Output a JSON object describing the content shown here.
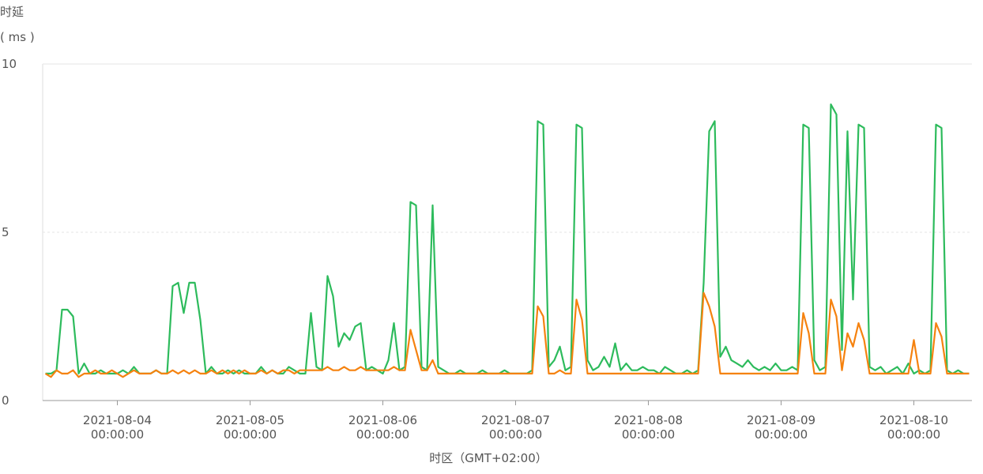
{
  "chart_data": {
    "type": "line",
    "ylabel": "时延",
    "yunit": "( ms )",
    "xlabel": "时区（GMT+02:00）",
    "xlim": [
      "2021-08-03 10:30:00",
      "2021-08-10 10:30:00"
    ],
    "xticks": [
      "2021-08-04 00:00:00",
      "2021-08-05 00:00:00",
      "2021-08-06 00:00:00",
      "2021-08-07 00:00:00",
      "2021-08-08 00:00:00",
      "2021-08-09 00:00:00",
      "2021-08-10 00:00:00"
    ],
    "ylim": [
      0,
      10
    ],
    "yticks": [
      0,
      5,
      10
    ],
    "grid": true,
    "x": [
      "2021-08-03 11:00:00",
      "2021-08-03 12:00:00",
      "2021-08-03 13:00:00",
      "2021-08-03 14:00:00",
      "2021-08-03 15:00:00",
      "2021-08-03 16:00:00",
      "2021-08-03 17:00:00",
      "2021-08-03 18:00:00",
      "2021-08-03 19:00:00",
      "2021-08-03 20:00:00",
      "2021-08-03 21:00:00",
      "2021-08-03 22:00:00",
      "2021-08-03 23:00:00",
      "2021-08-04 00:00:00",
      "2021-08-04 01:00:00",
      "2021-08-04 02:00:00",
      "2021-08-04 03:00:00",
      "2021-08-04 04:00:00",
      "2021-08-04 05:00:00",
      "2021-08-04 06:00:00",
      "2021-08-04 07:00:00",
      "2021-08-04 08:00:00",
      "2021-08-04 09:00:00",
      "2021-08-04 10:00:00",
      "2021-08-04 11:00:00",
      "2021-08-04 12:00:00",
      "2021-08-04 13:00:00",
      "2021-08-04 14:00:00",
      "2021-08-04 15:00:00",
      "2021-08-04 16:00:00",
      "2021-08-04 17:00:00",
      "2021-08-04 18:00:00",
      "2021-08-04 19:00:00",
      "2021-08-04 20:00:00",
      "2021-08-04 21:00:00",
      "2021-08-04 22:00:00",
      "2021-08-04 23:00:00",
      "2021-08-05 00:00:00",
      "2021-08-05 01:00:00",
      "2021-08-05 02:00:00",
      "2021-08-05 03:00:00",
      "2021-08-05 04:00:00",
      "2021-08-05 05:00:00",
      "2021-08-05 06:00:00",
      "2021-08-05 07:00:00",
      "2021-08-05 08:00:00",
      "2021-08-05 09:00:00",
      "2021-08-05 10:00:00",
      "2021-08-05 11:00:00",
      "2021-08-05 12:00:00",
      "2021-08-05 13:00:00",
      "2021-08-05 14:00:00",
      "2021-08-05 15:00:00",
      "2021-08-05 16:00:00",
      "2021-08-05 17:00:00",
      "2021-08-05 18:00:00",
      "2021-08-05 19:00:00",
      "2021-08-05 20:00:00",
      "2021-08-05 21:00:00",
      "2021-08-05 22:00:00",
      "2021-08-05 23:00:00",
      "2021-08-06 00:00:00",
      "2021-08-06 01:00:00",
      "2021-08-06 02:00:00",
      "2021-08-06 03:00:00",
      "2021-08-06 04:00:00",
      "2021-08-06 05:00:00",
      "2021-08-06 06:00:00",
      "2021-08-06 07:00:00",
      "2021-08-06 08:00:00",
      "2021-08-06 09:00:00",
      "2021-08-06 10:00:00",
      "2021-08-06 11:00:00",
      "2021-08-06 12:00:00",
      "2021-08-06 13:00:00",
      "2021-08-06 14:00:00",
      "2021-08-06 15:00:00",
      "2021-08-06 16:00:00",
      "2021-08-06 17:00:00",
      "2021-08-06 18:00:00",
      "2021-08-06 19:00:00",
      "2021-08-06 20:00:00",
      "2021-08-06 21:00:00",
      "2021-08-06 22:00:00",
      "2021-08-06 23:00:00",
      "2021-08-07 00:00:00",
      "2021-08-07 01:00:00",
      "2021-08-07 02:00:00",
      "2021-08-07 03:00:00",
      "2021-08-07 04:00:00",
      "2021-08-07 05:00:00",
      "2021-08-07 06:00:00",
      "2021-08-07 07:00:00",
      "2021-08-07 08:00:00",
      "2021-08-07 09:00:00",
      "2021-08-07 10:00:00",
      "2021-08-07 11:00:00",
      "2021-08-07 12:00:00",
      "2021-08-07 13:00:00",
      "2021-08-07 14:00:00",
      "2021-08-07 15:00:00",
      "2021-08-07 16:00:00",
      "2021-08-07 17:00:00",
      "2021-08-07 18:00:00",
      "2021-08-07 19:00:00",
      "2021-08-07 20:00:00",
      "2021-08-07 21:00:00",
      "2021-08-07 22:00:00",
      "2021-08-07 23:00:00",
      "2021-08-08 00:00:00",
      "2021-08-08 01:00:00",
      "2021-08-08 02:00:00",
      "2021-08-08 03:00:00",
      "2021-08-08 04:00:00",
      "2021-08-08 05:00:00",
      "2021-08-08 06:00:00",
      "2021-08-08 07:00:00",
      "2021-08-08 08:00:00",
      "2021-08-08 09:00:00",
      "2021-08-08 10:00:00",
      "2021-08-08 11:00:00",
      "2021-08-08 12:00:00",
      "2021-08-08 13:00:00",
      "2021-08-08 14:00:00",
      "2021-08-08 15:00:00",
      "2021-08-08 16:00:00",
      "2021-08-08 17:00:00",
      "2021-08-08 18:00:00",
      "2021-08-08 19:00:00",
      "2021-08-08 20:00:00",
      "2021-08-08 21:00:00",
      "2021-08-08 22:00:00",
      "2021-08-08 23:00:00",
      "2021-08-09 00:00:00",
      "2021-08-09 01:00:00",
      "2021-08-09 02:00:00",
      "2021-08-09 03:00:00",
      "2021-08-09 04:00:00",
      "2021-08-09 05:00:00",
      "2021-08-09 06:00:00",
      "2021-08-09 07:00:00",
      "2021-08-09 08:00:00",
      "2021-08-09 09:00:00",
      "2021-08-09 10:00:00",
      "2021-08-09 11:00:00",
      "2021-08-09 12:00:00",
      "2021-08-09 13:00:00",
      "2021-08-09 14:00:00",
      "2021-08-09 15:00:00",
      "2021-08-09 16:00:00",
      "2021-08-09 17:00:00",
      "2021-08-09 18:00:00",
      "2021-08-09 19:00:00",
      "2021-08-09 20:00:00",
      "2021-08-09 21:00:00",
      "2021-08-09 22:00:00",
      "2021-08-09 23:00:00",
      "2021-08-10 00:00:00",
      "2021-08-10 01:00:00",
      "2021-08-10 02:00:00",
      "2021-08-10 03:00:00",
      "2021-08-10 04:00:00",
      "2021-08-10 05:00:00",
      "2021-08-10 06:00:00",
      "2021-08-10 07:00:00",
      "2021-08-10 08:00:00",
      "2021-08-10 09:00:00",
      "2021-08-10 10:00:00"
    ],
    "series": [
      {
        "color": "#2dbb5c",
        "values": [
          0.8,
          0.8,
          0.9,
          2.7,
          2.7,
          2.5,
          0.8,
          1.1,
          0.8,
          0.8,
          0.9,
          0.8,
          0.8,
          0.8,
          0.9,
          0.8,
          1.0,
          0.8,
          0.8,
          0.8,
          0.9,
          0.8,
          0.8,
          3.4,
          3.5,
          2.6,
          3.5,
          3.5,
          2.4,
          0.8,
          1.0,
          0.8,
          0.8,
          0.9,
          0.8,
          0.9,
          0.8,
          0.8,
          0.8,
          1.0,
          0.8,
          0.9,
          0.8,
          0.8,
          1.0,
          0.9,
          0.8,
          0.8,
          2.6,
          1.0,
          0.9,
          3.7,
          3.1,
          1.6,
          2.0,
          1.8,
          2.2,
          2.3,
          0.9,
          1.0,
          0.9,
          0.8,
          1.2,
          2.3,
          0.9,
          1.0,
          5.9,
          5.8,
          1.0,
          0.9,
          5.8,
          1.0,
          0.9,
          0.8,
          0.8,
          0.9,
          0.8,
          0.8,
          0.8,
          0.9,
          0.8,
          0.8,
          0.8,
          0.9,
          0.8,
          0.8,
          0.8,
          0.8,
          0.9,
          8.3,
          8.2,
          1.0,
          1.2,
          1.6,
          0.9,
          1.0,
          8.2,
          8.1,
          1.2,
          0.9,
          1.0,
          1.3,
          1.0,
          1.7,
          0.9,
          1.1,
          0.9,
          0.9,
          1.0,
          0.9,
          0.9,
          0.8,
          1.0,
          0.9,
          0.8,
          0.8,
          0.9,
          0.8,
          0.9,
          3.5,
          8.0,
          8.3,
          1.3,
          1.6,
          1.2,
          1.1,
          1.0,
          1.2,
          1.0,
          0.9,
          1.0,
          0.9,
          1.1,
          0.9,
          0.9,
          1.0,
          0.9,
          8.2,
          8.1,
          1.2,
          0.9,
          1.0,
          8.8,
          8.5,
          1.5,
          8.0,
          3.0,
          8.2,
          8.1,
          1.0,
          0.9,
          1.0,
          0.8,
          0.9,
          1.0,
          0.8,
          1.1,
          0.8,
          0.9,
          0.8,
          0.9,
          8.2,
          8.1,
          0.9,
          0.8,
          0.9,
          0.8,
          0.8
        ]
      },
      {
        "color": "#f5820f",
        "values": [
          0.8,
          0.7,
          0.9,
          0.8,
          0.8,
          0.9,
          0.7,
          0.8,
          0.8,
          0.9,
          0.8,
          0.8,
          0.9,
          0.8,
          0.7,
          0.8,
          0.9,
          0.8,
          0.8,
          0.8,
          0.9,
          0.8,
          0.8,
          0.9,
          0.8,
          0.9,
          0.8,
          0.9,
          0.8,
          0.8,
          0.9,
          0.8,
          0.9,
          0.8,
          0.9,
          0.8,
          0.9,
          0.8,
          0.8,
          0.9,
          0.8,
          0.9,
          0.8,
          0.9,
          0.9,
          0.8,
          0.9,
          0.9,
          0.9,
          0.9,
          0.9,
          1.0,
          0.9,
          0.9,
          1.0,
          0.9,
          0.9,
          1.0,
          0.9,
          0.9,
          0.9,
          0.9,
          0.9,
          1.0,
          0.9,
          0.9,
          2.1,
          1.5,
          0.9,
          0.9,
          1.2,
          0.8,
          0.8,
          0.8,
          0.8,
          0.8,
          0.8,
          0.8,
          0.8,
          0.8,
          0.8,
          0.8,
          0.8,
          0.8,
          0.8,
          0.8,
          0.8,
          0.8,
          0.8,
          2.8,
          2.5,
          0.8,
          0.8,
          0.9,
          0.8,
          0.8,
          3.0,
          2.4,
          0.8,
          0.8,
          0.8,
          0.8,
          0.8,
          0.8,
          0.8,
          0.8,
          0.8,
          0.8,
          0.8,
          0.8,
          0.8,
          0.8,
          0.8,
          0.8,
          0.8,
          0.8,
          0.8,
          0.8,
          0.8,
          3.2,
          2.8,
          2.2,
          0.8,
          0.8,
          0.8,
          0.8,
          0.8,
          0.8,
          0.8,
          0.8,
          0.8,
          0.8,
          0.8,
          0.8,
          0.8,
          0.8,
          0.8,
          2.6,
          2.0,
          0.8,
          0.8,
          0.8,
          3.0,
          2.5,
          0.9,
          2.0,
          1.6,
          2.3,
          1.8,
          0.8,
          0.8,
          0.8,
          0.8,
          0.8,
          0.8,
          0.8,
          0.8,
          1.8,
          0.8,
          0.8,
          0.8,
          2.3,
          1.9,
          0.8,
          0.8,
          0.8,
          0.8,
          0.8
        ]
      }
    ]
  }
}
